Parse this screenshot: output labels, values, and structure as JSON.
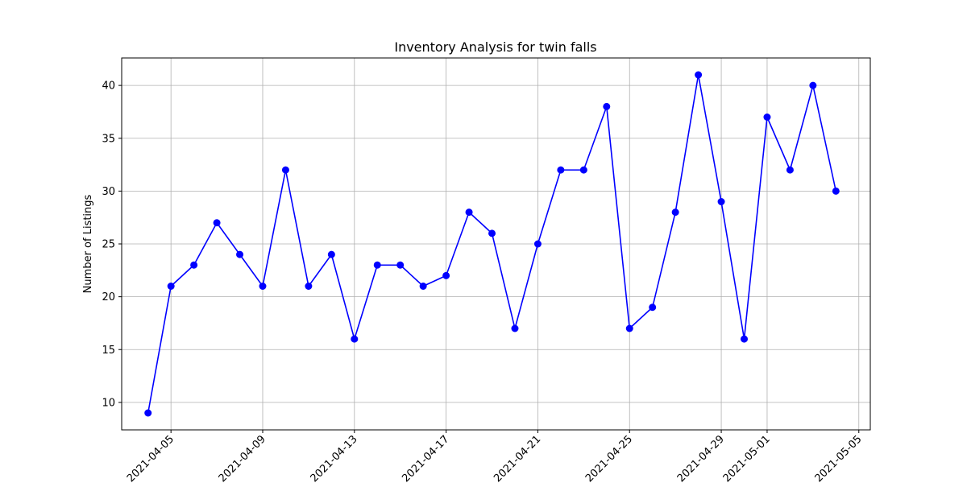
{
  "chart_data": {
    "type": "line",
    "title": "Inventory Analysis for twin falls",
    "xlabel": "",
    "ylabel": "Number of Listings",
    "x": [
      "2021-04-04",
      "2021-04-05",
      "2021-04-06",
      "2021-04-07",
      "2021-04-08",
      "2021-04-09",
      "2021-04-10",
      "2021-04-11",
      "2021-04-12",
      "2021-04-13",
      "2021-04-14",
      "2021-04-15",
      "2021-04-16",
      "2021-04-17",
      "2021-04-18",
      "2021-04-19",
      "2021-04-20",
      "2021-04-21",
      "2021-04-22",
      "2021-04-23",
      "2021-04-24",
      "2021-04-25",
      "2021-04-26",
      "2021-04-27",
      "2021-04-28",
      "2021-04-29",
      "2021-04-30",
      "2021-05-01",
      "2021-05-02",
      "2021-05-03",
      "2021-05-04"
    ],
    "series": [
      {
        "values": [
          9,
          21,
          23,
          27,
          24,
          21,
          32,
          21,
          24,
          16,
          23,
          23,
          21,
          22,
          28,
          26,
          17,
          25,
          32,
          32,
          38,
          17,
          19,
          28,
          41,
          29,
          16,
          37,
          32,
          40,
          30
        ],
        "color": "#0000ff",
        "marker": "circle"
      }
    ],
    "xticks": [
      "2021-04-05",
      "2021-04-09",
      "2021-04-13",
      "2021-04-17",
      "2021-04-21",
      "2021-04-25",
      "2021-04-29",
      "2021-05-01",
      "2021-05-05"
    ],
    "yticks": [
      10,
      15,
      20,
      25,
      30,
      35,
      40
    ],
    "xlim": [
      "2021-04-02 20:24",
      "2021-05-05 12:00"
    ],
    "ylim": [
      7.4,
      42.6
    ],
    "grid": true
  }
}
